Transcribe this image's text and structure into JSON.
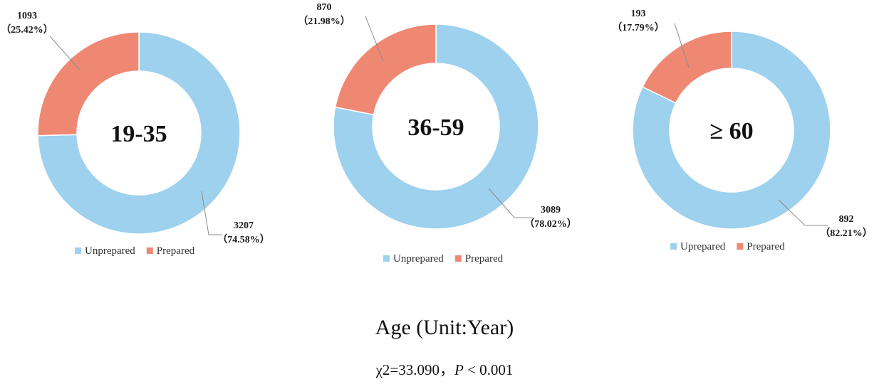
{
  "colors": {
    "unprepared": "#9DD1EE",
    "prepared": "#EF8873",
    "separator": "#ffffff"
  },
  "chart_data": [
    {
      "type": "pie",
      "variant": "donut",
      "center_label": "19-35",
      "slices": [
        {
          "name": "Unprepared",
          "value": 3207,
          "label": "3207",
          "pct_label": "（74.58%）"
        },
        {
          "name": "Prepared",
          "value": 1093,
          "label": "1093",
          "pct_label": "（25.42%）"
        }
      ],
      "legend": [
        "Unprepared",
        "Prepared"
      ],
      "legend_placement": "bottom"
    },
    {
      "type": "pie",
      "variant": "donut",
      "center_label": "36-59",
      "slices": [
        {
          "name": "Unprepared",
          "value": 3089,
          "label": "3089",
          "pct_label": "（78.02%）"
        },
        {
          "name": "Prepared",
          "value": 870,
          "label": "870",
          "pct_label": "（21.98%）"
        }
      ],
      "legend": [
        "Unprepared",
        "Prepared"
      ],
      "legend_placement": "bottom"
    },
    {
      "type": "pie",
      "variant": "donut",
      "center_label": "≥ 60",
      "slices": [
        {
          "name": "Uprepared",
          "value": 892,
          "label": "892",
          "pct_label": "（82.21%）"
        },
        {
          "name": "Prepared",
          "value": 193,
          "label": "193",
          "pct_label": "（17.79%）"
        }
      ],
      "legend": [
        "Uprepared",
        "Prepared"
      ],
      "legend_placement": "bottom"
    }
  ],
  "xlabel": "Age (Unit:Year)",
  "stat": {
    "chi_label": "χ2=33.090，",
    "p_symbol": "P",
    "p_value": " < 0.001"
  }
}
